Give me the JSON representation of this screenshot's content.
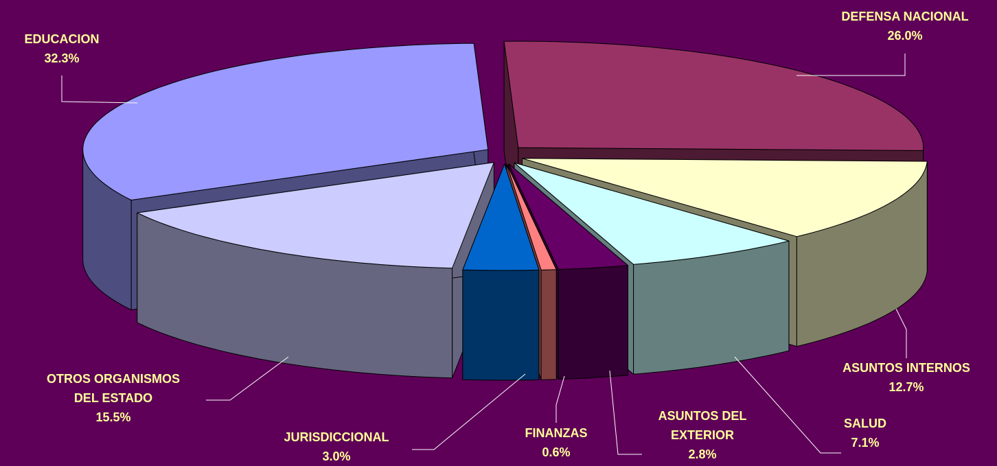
{
  "chart_data": {
    "type": "pie3d",
    "categories": [
      "DEFENSA NACIONAL",
      "ASUNTOS INTERNOS",
      "SALUD",
      "ASUNTOS DEL EXTERIOR",
      "FINANZAS",
      "JURISDICCIONAL",
      "OTROS ORGANISMOS DEL ESTADO",
      "EDUCACION"
    ],
    "values": [
      26.0,
      12.7,
      7.1,
      2.8,
      0.6,
      3.0,
      15.5,
      32.3
    ],
    "value_labels": [
      "26.0%",
      "12.7%",
      "7.1%",
      "2.8%",
      "0.6%",
      "3.0%",
      "15.5%",
      "32.3%"
    ],
    "colors": [
      "#993366",
      "#ffffcc",
      "#ccffff",
      "#660066",
      "#ff8080",
      "#0066cc",
      "#ccccff",
      "#9999ff"
    ],
    "side_colors": [
      "#4d1a33",
      "#808066",
      "#668080",
      "#330033",
      "#804040",
      "#003366",
      "#666680",
      "#4d4d80"
    ]
  }
}
